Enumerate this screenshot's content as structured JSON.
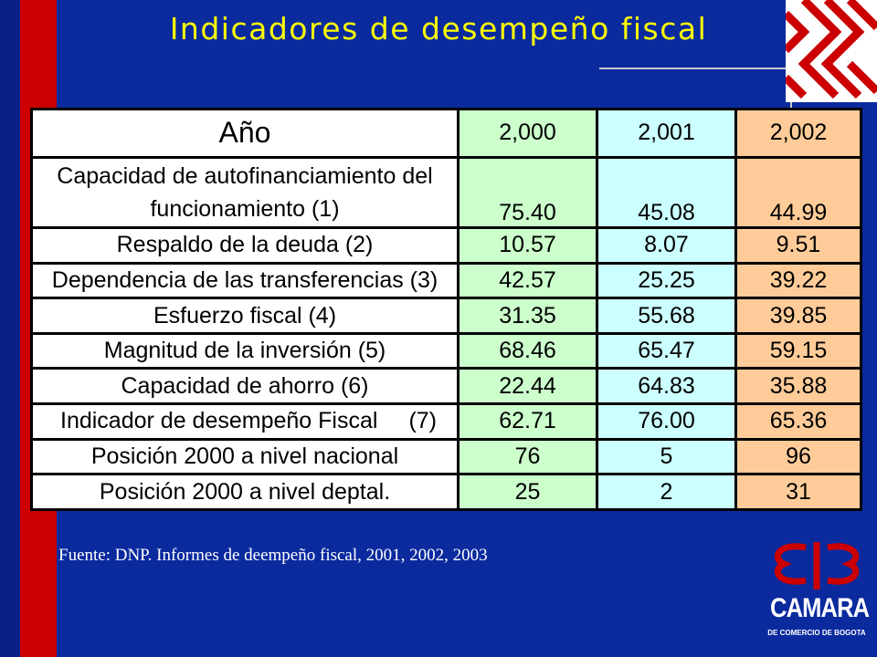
{
  "slide": {
    "title": "Indicadores de desempeño fiscal",
    "source": "Fuente: DNP. Informes de deempeño fiscal, 2001, 2002, 2003"
  },
  "table": {
    "header": {
      "label": "Año",
      "years": [
        "2,000",
        "2,001",
        "2,002"
      ]
    },
    "rows": [
      {
        "label_line1": "Capacidad de autofinanciamiento del",
        "label_line2": "funcionamiento (1)",
        "values": [
          "75.40",
          "45.08",
          "44.99"
        ]
      },
      {
        "label": "Respaldo de la deuda (2)",
        "values": [
          "10.57",
          "8.07",
          "9.51"
        ]
      },
      {
        "label": "Dependencia de las transferencias (3)",
        "values": [
          "42.57",
          "25.25",
          "39.22"
        ]
      },
      {
        "label": "Esfuerzo fiscal (4)",
        "values": [
          "31.35",
          "55.68",
          "39.85"
        ]
      },
      {
        "label": "Magnitud de la inversión (5)",
        "values": [
          "68.46",
          "65.47",
          "59.15"
        ]
      },
      {
        "label": "Capacidad de ahorro (6)",
        "values": [
          "22.44",
          "64.83",
          "35.88"
        ]
      },
      {
        "label": "Indicador de desempeño Fiscal",
        "note": "(7)",
        "values": [
          "62.71",
          "76.00",
          "65.36"
        ]
      },
      {
        "label": "Posición 2000 a nivel nacional",
        "values": [
          "76",
          "5",
          "96"
        ]
      },
      {
        "label": "Posición 2000 a nivel deptal.",
        "values": [
          "25",
          "2",
          "31"
        ]
      }
    ]
  },
  "logo": {
    "name": "CAMARA",
    "subtitle": "DE COMERCIO DE BOGOTA",
    "colors": {
      "red": "#cc0000",
      "white": "#ffffff"
    },
    "icon": "camara-comercio-logo-icon"
  },
  "colors": {
    "background": "#0a2a9e",
    "accent_bar": "#cc0000",
    "title": "#ffff00",
    "col_2000": "#ccffcc",
    "col_2001": "#ccffff",
    "col_2002": "#ffcc99"
  }
}
